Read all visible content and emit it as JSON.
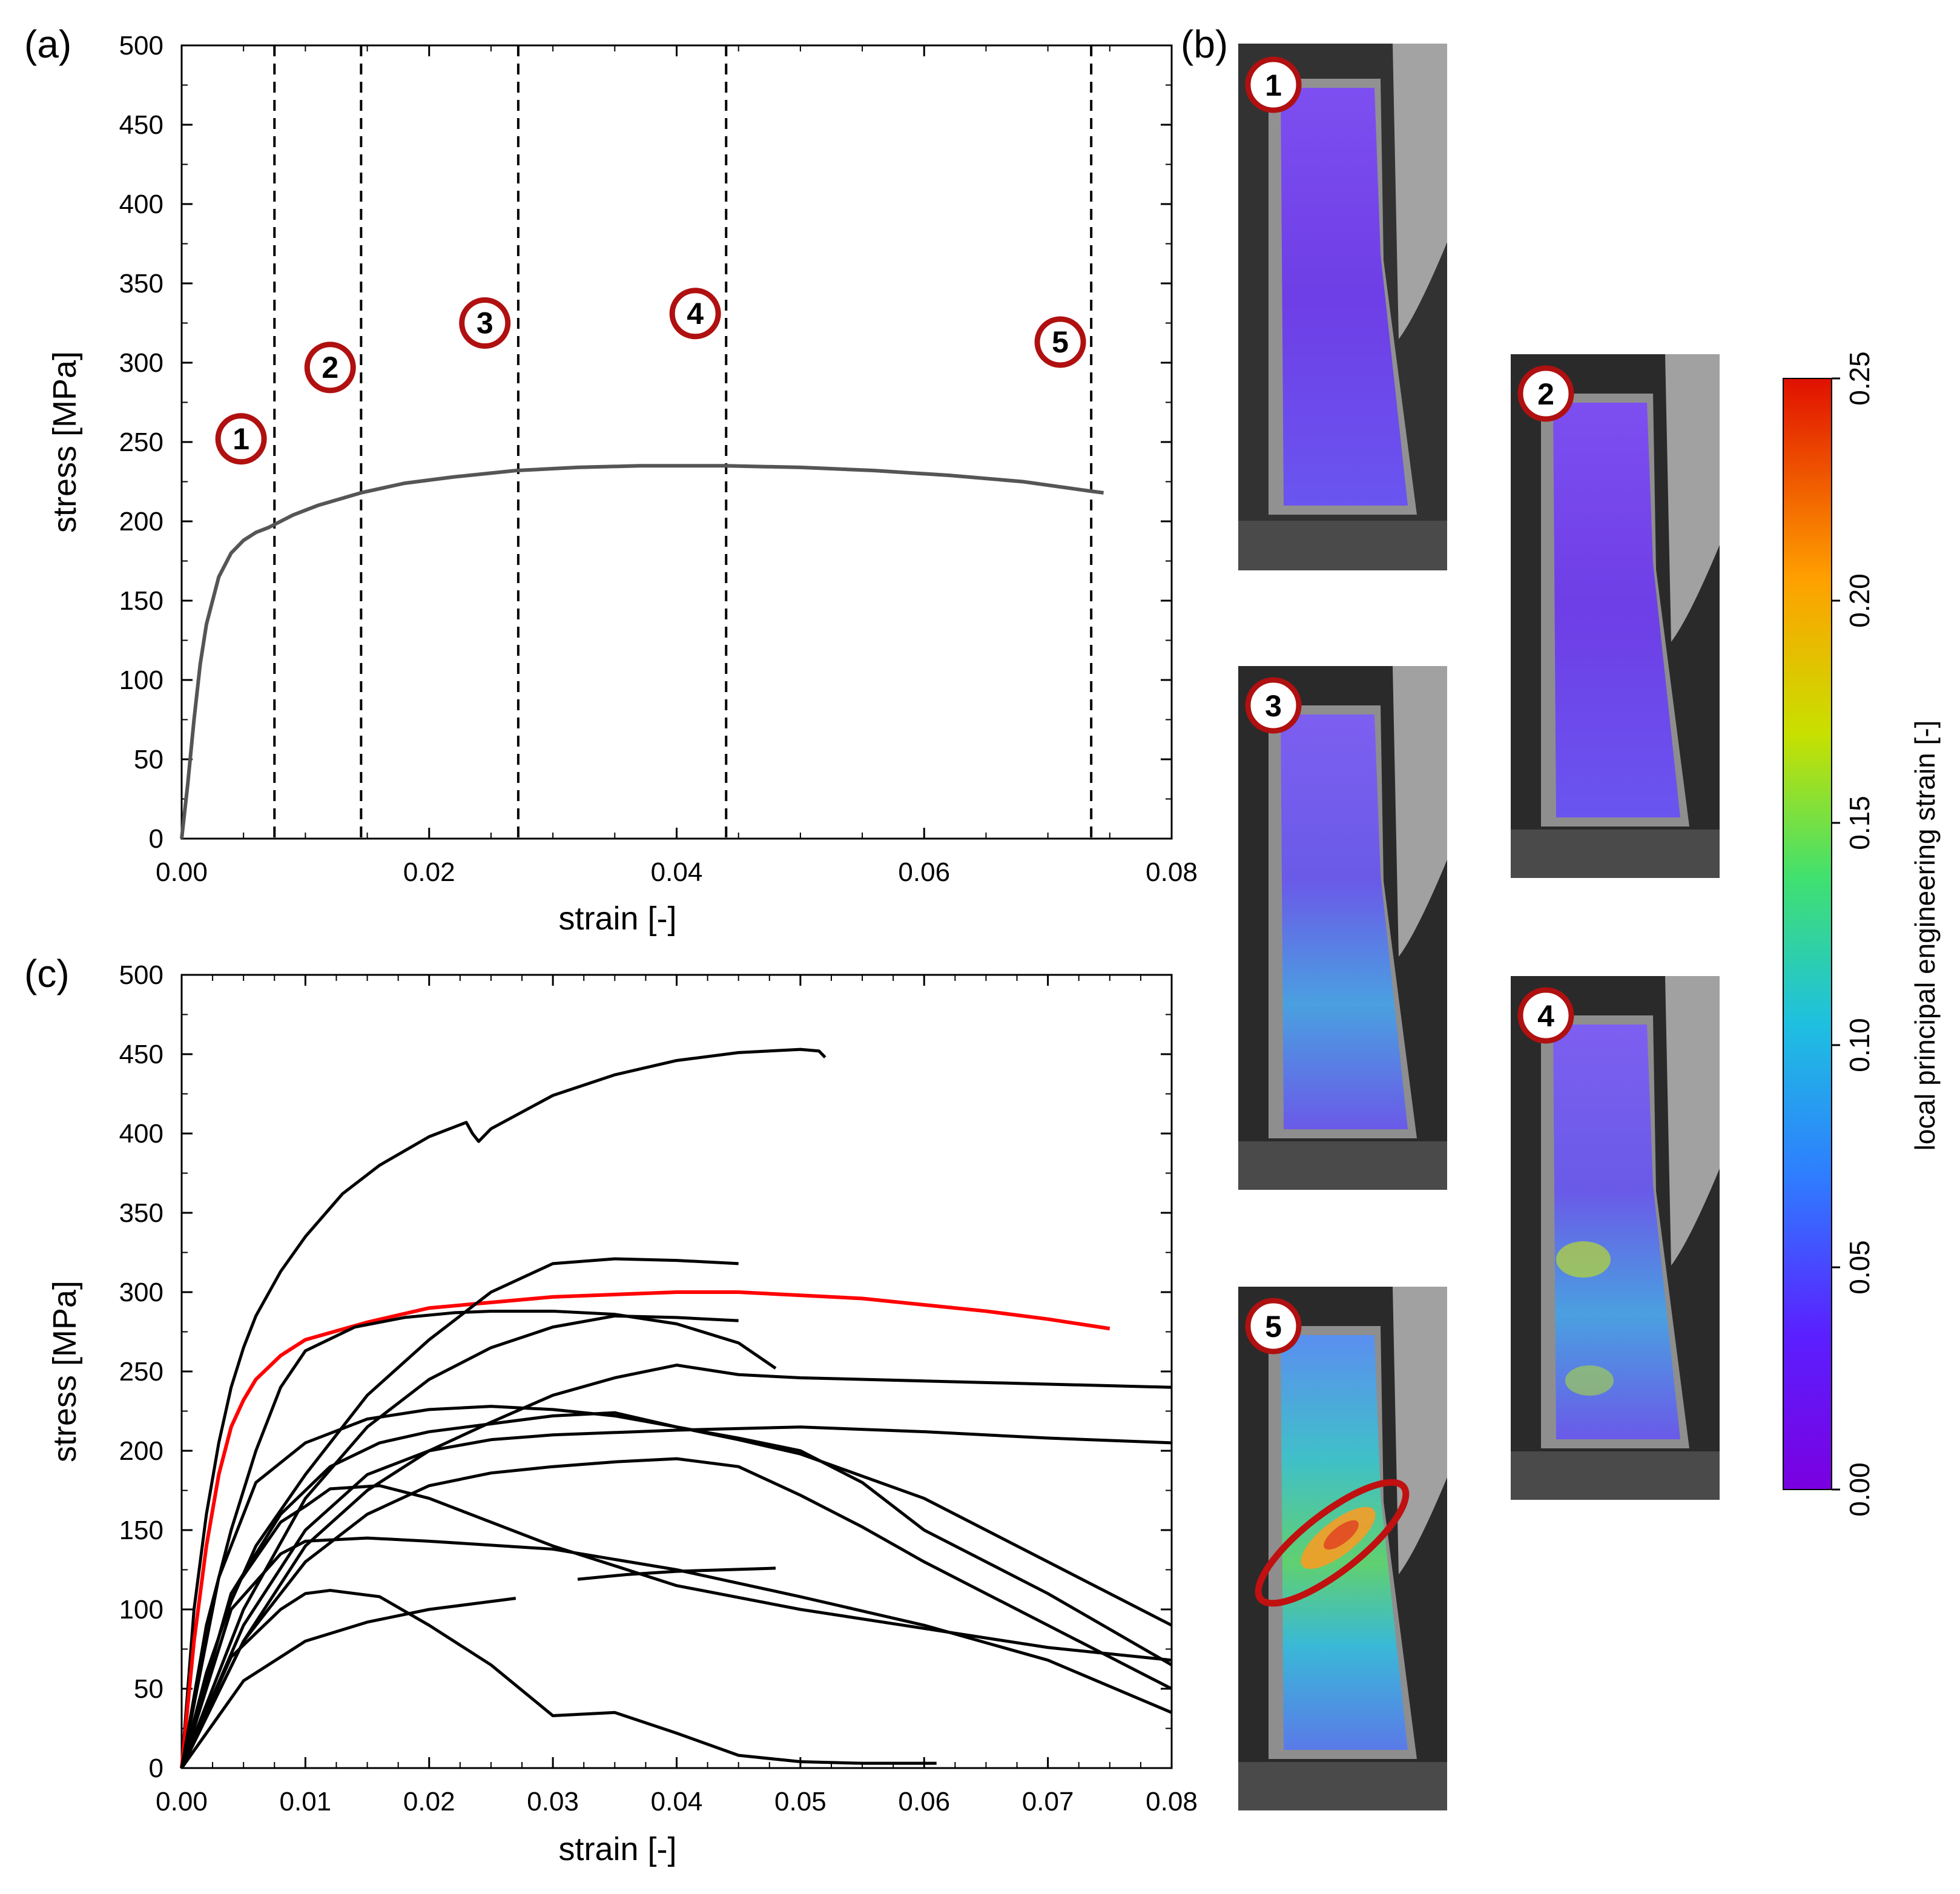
{
  "chart_data": [
    {
      "panel": "(a)",
      "type": "line",
      "xlabel": "strain [-]",
      "ylabel": "stress [MPa]",
      "xlim": [
        0,
        0.08
      ],
      "ylim": [
        0,
        500
      ],
      "xticks": [
        "0.00",
        "0.02",
        "0.04",
        "0.06",
        "0.08"
      ],
      "yticks": [
        "0",
        "50",
        "100",
        "150",
        "200",
        "250",
        "300",
        "350",
        "400",
        "450",
        "500"
      ],
      "line_color": "#555555",
      "series": [
        {
          "name": "stress-strain",
          "x": [
            0,
            0.0005,
            0.001,
            0.0015,
            0.002,
            0.003,
            0.004,
            0.005,
            0.006,
            0.007,
            0.0075,
            0.009,
            0.011,
            0.0145,
            0.018,
            0.022,
            0.027,
            0.032,
            0.037,
            0.044,
            0.05,
            0.056,
            0.062,
            0.068,
            0.0735,
            0.0745
          ],
          "y": [
            0,
            35,
            75,
            110,
            135,
            165,
            180,
            188,
            193,
            196,
            198,
            204,
            210,
            218,
            224,
            228,
            232,
            234,
            235,
            235,
            234,
            232,
            229,
            225,
            219,
            218
          ]
        }
      ],
      "stage_lines": [
        0.0075,
        0.0145,
        0.0272,
        0.044,
        0.0735
      ],
      "stage_markers": [
        {
          "label": "1",
          "x": 0.0048,
          "y": 252
        },
        {
          "label": "2",
          "x": 0.012,
          "y": 297
        },
        {
          "label": "3",
          "x": 0.0245,
          "y": 325
        },
        {
          "label": "4",
          "x": 0.0415,
          "y": 331
        },
        {
          "label": "5",
          "x": 0.071,
          "y": 313
        }
      ]
    },
    {
      "panel": "(c)",
      "type": "line",
      "xlabel": "strain [-]",
      "ylabel": "stress [MPa]",
      "xlim": [
        0,
        0.08
      ],
      "ylim": [
        0,
        500
      ],
      "xticks": [
        "0.00",
        "0.01",
        "0.02",
        "0.03",
        "0.04",
        "0.05",
        "0.06",
        "0.07",
        "0.08"
      ],
      "yticks": [
        "0",
        "50",
        "100",
        "150",
        "200",
        "250",
        "300",
        "350",
        "400",
        "450",
        "500"
      ],
      "highlight_color": "#ff0000",
      "series": [
        {
          "name": "s1",
          "color": "#000000",
          "x": [
            0,
            0.001,
            0.002,
            0.003,
            0.004,
            0.005,
            0.006,
            0.008,
            0.01,
            0.013,
            0.016,
            0.02,
            0.023,
            0.0235,
            0.024,
            0.025,
            0.03,
            0.035,
            0.04,
            0.045,
            0.05,
            0.0515,
            0.052
          ],
          "y": [
            0,
            100,
            160,
            205,
            240,
            265,
            285,
            313,
            335,
            362,
            380,
            398,
            407,
            400,
            395,
            403,
            424,
            437,
            446,
            451,
            453,
            452,
            448
          ]
        },
        {
          "name": "s2-red",
          "color": "#ff0000",
          "x": [
            0,
            0.001,
            0.002,
            0.003,
            0.004,
            0.005,
            0.006,
            0.008,
            0.01,
            0.015,
            0.02,
            0.03,
            0.04,
            0.045,
            0.05,
            0.055,
            0.06,
            0.065,
            0.07,
            0.075
          ],
          "y": [
            0,
            80,
            140,
            185,
            215,
            232,
            245,
            260,
            270,
            281,
            290,
            297,
            300,
            300,
            298,
            296,
            292,
            288,
            283,
            277
          ]
        },
        {
          "name": "s3",
          "color": "#000000",
          "x": [
            0,
            0.002,
            0.004,
            0.006,
            0.01,
            0.015,
            0.02,
            0.025,
            0.03,
            0.035,
            0.04,
            0.045
          ],
          "y": [
            0,
            60,
            105,
            140,
            185,
            235,
            270,
            300,
            318,
            321,
            320,
            318
          ]
        },
        {
          "name": "s4",
          "color": "#000000",
          "x": [
            0,
            0.002,
            0.004,
            0.006,
            0.008,
            0.01,
            0.014,
            0.018,
            0.022,
            0.025,
            0.03,
            0.035,
            0.04,
            0.045,
            0.048
          ],
          "y": [
            0,
            90,
            150,
            200,
            240,
            263,
            278,
            284,
            287,
            288,
            288,
            286,
            280,
            268,
            252
          ]
        },
        {
          "name": "s5",
          "color": "#000000",
          "x": [
            0,
            0.005,
            0.01,
            0.015,
            0.02,
            0.025,
            0.03,
            0.035,
            0.04,
            0.045
          ],
          "y": [
            0,
            100,
            170,
            215,
            245,
            265,
            278,
            285,
            284,
            282
          ]
        },
        {
          "name": "s6",
          "color": "#000000",
          "x": [
            0,
            0.005,
            0.01,
            0.015,
            0.02,
            0.025,
            0.03,
            0.035,
            0.04,
            0.045,
            0.05,
            0.06,
            0.07,
            0.08
          ],
          "y": [
            0,
            80,
            140,
            175,
            200,
            218,
            235,
            246,
            254,
            248,
            246,
            244,
            242,
            240
          ]
        },
        {
          "name": "s7",
          "color": "#000000",
          "x": [
            0,
            0.003,
            0.006,
            0.01,
            0.015,
            0.02,
            0.025,
            0.03,
            0.035,
            0.04,
            0.045,
            0.05,
            0.06,
            0.07,
            0.08
          ],
          "y": [
            0,
            120,
            180,
            205,
            220,
            226,
            228,
            226,
            222,
            215,
            207,
            198,
            170,
            130,
            90
          ]
        },
        {
          "name": "s8",
          "color": "#000000",
          "x": [
            0,
            0.005,
            0.01,
            0.015,
            0.02,
            0.025,
            0.03,
            0.04,
            0.05,
            0.06,
            0.07,
            0.08
          ],
          "y": [
            0,
            90,
            150,
            185,
            200,
            207,
            210,
            213,
            215,
            212,
            208,
            205
          ]
        },
        {
          "name": "s9",
          "color": "#000000",
          "x": [
            0,
            0.004,
            0.008,
            0.012,
            0.016,
            0.02,
            0.025,
            0.03,
            0.035,
            0.04,
            0.045,
            0.05,
            0.055,
            0.06,
            0.07,
            0.08
          ],
          "y": [
            0,
            110,
            160,
            190,
            205,
            212,
            217,
            222,
            224,
            215,
            208,
            200,
            180,
            150,
            110,
            65
          ]
        },
        {
          "name": "s10",
          "color": "#000000",
          "x": [
            0,
            0.005,
            0.01,
            0.015,
            0.02,
            0.025,
            0.03,
            0.035,
            0.04,
            0.045,
            0.05,
            0.055,
            0.06,
            0.07,
            0.08
          ],
          "y": [
            0,
            80,
            130,
            160,
            178,
            186,
            190,
            193,
            195,
            190,
            172,
            152,
            130,
            90,
            50
          ]
        },
        {
          "name": "s11",
          "color": "#000000",
          "x": [
            0,
            0.004,
            0.008,
            0.01,
            0.012,
            0.016,
            0.02,
            0.03,
            0.04,
            0.05,
            0.06,
            0.07,
            0.08
          ],
          "y": [
            0,
            110,
            155,
            165,
            176,
            178,
            170,
            140,
            115,
            100,
            88,
            76,
            68
          ]
        },
        {
          "name": "s12",
          "color": "#000000",
          "x": [
            0,
            0.004,
            0.008,
            0.01,
            0.015,
            0.02,
            0.03,
            0.04,
            0.05,
            0.06,
            0.07,
            0.08
          ],
          "y": [
            0,
            100,
            135,
            143,
            145,
            143,
            138,
            125,
            108,
            90,
            68,
            35
          ]
        },
        {
          "name": "s13",
          "color": "#000000",
          "x": [
            0,
            0.004,
            0.008,
            0.01,
            0.012,
            0.016,
            0.02,
            0.025,
            0.03,
            0.035,
            0.04,
            0.045,
            0.05,
            0.055,
            0.061
          ],
          "y": [
            0,
            70,
            100,
            110,
            112,
            108,
            90,
            65,
            33,
            35,
            22,
            8,
            4,
            3,
            3
          ]
        },
        {
          "name": "s14",
          "color": "#000000",
          "x": [
            0,
            0.005,
            0.01,
            0.015,
            0.02,
            0.024,
            0.027
          ],
          "y": [
            0,
            55,
            80,
            92,
            100,
            104,
            107
          ]
        },
        {
          "name": "s15",
          "color": "#000000",
          "x": [
            0.032,
            0.036,
            0.04,
            0.044,
            0.048
          ],
          "y": [
            119,
            122,
            124,
            125,
            126
          ]
        }
      ]
    }
  ],
  "figure": {
    "panel_a_label": "(a)",
    "panel_b_label": "(b)",
    "panel_c_label": "(c)",
    "snapshot_labels": [
      "1",
      "2",
      "3",
      "4",
      "5"
    ],
    "colorbar": {
      "title": "local principal engineering strain [-]",
      "ticks": [
        "0.00",
        "0.05",
        "0.10",
        "0.15",
        "0.20",
        "0.25"
      ]
    },
    "colors": {
      "marker_ring": "#b01010",
      "colorbar_stops": [
        "#7a00e0",
        "#3a4cff",
        "#1ea0ff",
        "#20d0a0",
        "#50e040",
        "#d8e000",
        "#ffa000",
        "#e02000"
      ]
    }
  }
}
